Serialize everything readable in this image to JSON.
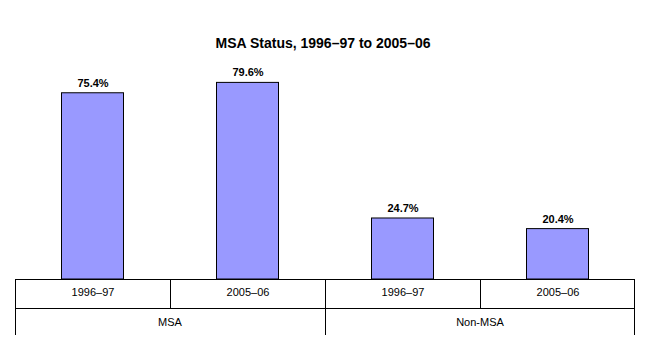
{
  "chart_data": {
    "type": "bar",
    "title": "MSA Status, 1996–97 to 2005–06",
    "categories": [
      "MSA",
      "Non-MSA"
    ],
    "series": [
      {
        "name": "1996–97",
        "color": "#9999ff",
        "values": [
          75.4,
          24.7
        ],
        "value_labels": [
          "75.4%",
          "24.7%"
        ]
      },
      {
        "name": "2005–06",
        "color": "#9999ff",
        "values": [
          79.6,
          20.4
        ],
        "value_labels": [
          "79.6%",
          "20.4%"
        ]
      }
    ],
    "ylim": [
      0,
      100
    ],
    "yticks": [],
    "data_labels": true,
    "tick_labels": "x"
  }
}
